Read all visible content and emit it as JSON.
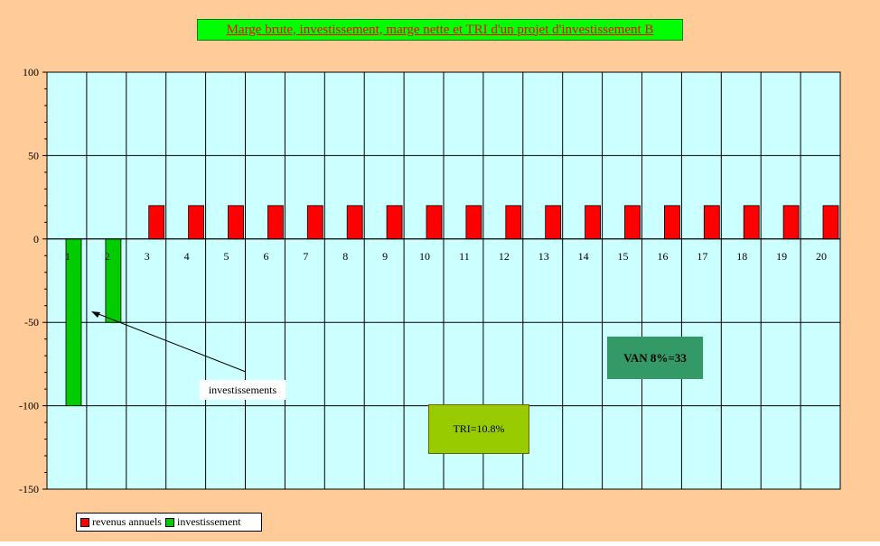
{
  "colors": {
    "outer_background": "#ffcc99",
    "plot_background": "#ccffff",
    "revenus": "#ff0000",
    "investissement": "#00cc00",
    "title_background": "#00ff00",
    "title_text": "#ff0000",
    "tri_box": "#99cc00",
    "van_box": "#339966"
  },
  "annotations": {
    "arrow_label": "investissements",
    "tri": "TRI=10.8%",
    "van": "VAN 8%=33"
  },
  "chart_data": {
    "type": "bar",
    "title": "Marge brute, investissement, marge nette et TRI d'un projet d'investissement B",
    "xlabel": "",
    "ylabel": "",
    "ylim": [
      -150,
      100
    ],
    "yticks": [
      100,
      50,
      0,
      -50,
      -100,
      -150
    ],
    "categories": [
      "1",
      "2",
      "3",
      "4",
      "5",
      "6",
      "7",
      "8",
      "9",
      "10",
      "11",
      "12",
      "13",
      "14",
      "15",
      "16",
      "17",
      "18",
      "19",
      "20"
    ],
    "grid": true,
    "legend_position": "bottom-left",
    "series": [
      {
        "name": "revenus annuels",
        "color": "#ff0000",
        "values": [
          0,
          0,
          20,
          20,
          20,
          20,
          20,
          20,
          20,
          20,
          20,
          20,
          20,
          20,
          20,
          20,
          20,
          20,
          20,
          20
        ]
      },
      {
        "name": "investissement",
        "color": "#00cc00",
        "values": [
          -100,
          -50,
          0,
          0,
          0,
          0,
          0,
          0,
          0,
          0,
          0,
          0,
          0,
          0,
          0,
          0,
          0,
          0,
          0,
          0
        ]
      }
    ]
  }
}
